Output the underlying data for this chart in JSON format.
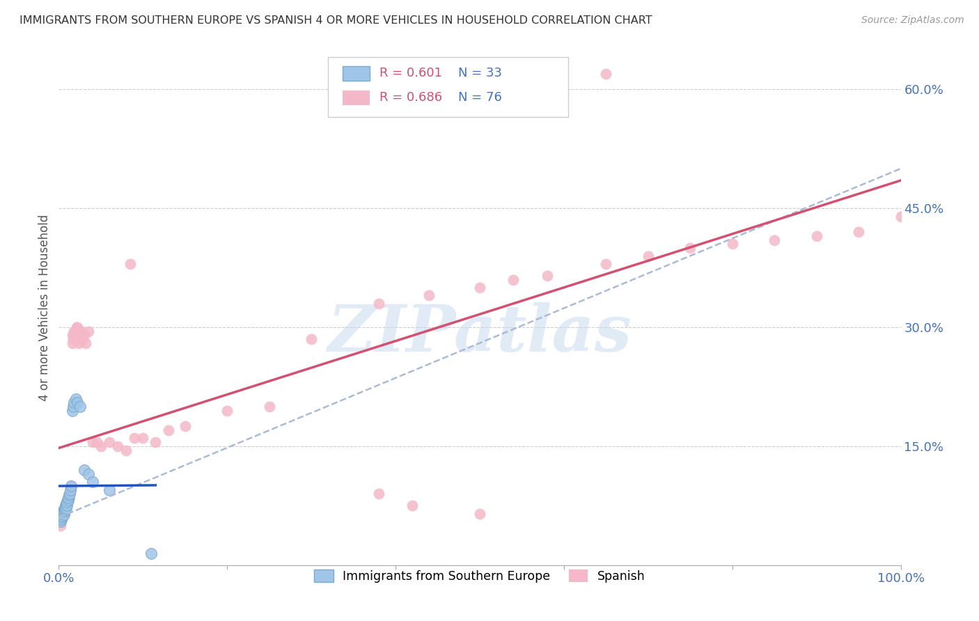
{
  "title": "IMMIGRANTS FROM SOUTHERN EUROPE VS SPANISH 4 OR MORE VEHICLES IN HOUSEHOLD CORRELATION CHART",
  "source": "Source: ZipAtlas.com",
  "ylabel": "4 or more Vehicles in Household",
  "xlim": [
    0.0,
    1.0
  ],
  "ylim": [
    0.0,
    0.65
  ],
  "xtick_labels": [
    "0.0%",
    "",
    "",
    "",
    "",
    "100.0%"
  ],
  "ytick_labels": [
    "",
    "15.0%",
    "30.0%",
    "45.0%",
    "60.0%"
  ],
  "yticks": [
    0.0,
    0.15,
    0.3,
    0.45,
    0.6
  ],
  "xticks": [
    0.0,
    0.2,
    0.4,
    0.6,
    0.8,
    1.0
  ],
  "color_blue": "#4472c4",
  "background_color": "#ffffff",
  "scatter_blue_color": "#9fc5e8",
  "scatter_pink_color": "#f4b8c8",
  "line_blue_color": "#2255bb",
  "line_pink_color": "#d45070",
  "line_dashed_color": "#aabbd4",
  "legend_label1": "Immigrants from Southern Europe",
  "legend_label2": "Spanish",
  "watermark": "ZIPatlas",
  "blue_x": [
    0.002,
    0.003,
    0.004,
    0.004,
    0.005,
    0.005,
    0.006,
    0.006,
    0.007,
    0.007,
    0.008,
    0.008,
    0.009,
    0.009,
    0.01,
    0.01,
    0.011,
    0.011,
    0.012,
    0.013,
    0.014,
    0.015,
    0.016,
    0.017,
    0.018,
    0.02,
    0.022,
    0.025,
    0.03,
    0.035,
    0.04,
    0.06,
    0.11
  ],
  "blue_y": [
    0.055,
    0.058,
    0.06,
    0.065,
    0.062,
    0.068,
    0.064,
    0.07,
    0.068,
    0.072,
    0.07,
    0.075,
    0.072,
    0.078,
    0.075,
    0.08,
    0.082,
    0.085,
    0.088,
    0.09,
    0.095,
    0.1,
    0.195,
    0.2,
    0.205,
    0.21,
    0.205,
    0.2,
    0.12,
    0.115,
    0.105,
    0.095,
    0.015
  ],
  "pink_x": [
    0.002,
    0.003,
    0.003,
    0.004,
    0.004,
    0.005,
    0.005,
    0.006,
    0.006,
    0.007,
    0.007,
    0.008,
    0.008,
    0.009,
    0.009,
    0.01,
    0.01,
    0.011,
    0.011,
    0.012,
    0.012,
    0.013,
    0.013,
    0.014,
    0.014,
    0.015,
    0.015,
    0.016,
    0.016,
    0.017,
    0.018,
    0.019,
    0.02,
    0.021,
    0.022,
    0.023,
    0.024,
    0.025,
    0.027,
    0.028,
    0.03,
    0.032,
    0.035,
    0.04,
    0.045,
    0.05,
    0.06,
    0.07,
    0.08,
    0.09,
    0.1,
    0.115,
    0.13,
    0.15,
    0.2,
    0.25,
    0.3,
    0.38,
    0.44,
    0.5,
    0.54,
    0.58,
    0.65,
    0.7,
    0.75,
    0.8,
    0.85,
    0.9,
    0.95,
    1.0,
    0.085,
    0.38,
    0.42,
    0.5,
    0.58,
    0.65
  ],
  "pink_y": [
    0.05,
    0.055,
    0.06,
    0.06,
    0.065,
    0.062,
    0.068,
    0.065,
    0.07,
    0.068,
    0.074,
    0.07,
    0.075,
    0.073,
    0.078,
    0.076,
    0.082,
    0.08,
    0.085,
    0.083,
    0.088,
    0.086,
    0.09,
    0.092,
    0.095,
    0.096,
    0.1,
    0.28,
    0.29,
    0.285,
    0.295,
    0.285,
    0.295,
    0.3,
    0.3,
    0.295,
    0.28,
    0.285,
    0.295,
    0.285,
    0.29,
    0.28,
    0.295,
    0.155,
    0.155,
    0.15,
    0.155,
    0.15,
    0.145,
    0.16,
    0.16,
    0.155,
    0.17,
    0.175,
    0.195,
    0.2,
    0.285,
    0.33,
    0.34,
    0.35,
    0.36,
    0.365,
    0.38,
    0.39,
    0.4,
    0.405,
    0.41,
    0.415,
    0.42,
    0.44,
    0.38,
    0.09,
    0.075,
    0.065,
    0.6,
    0.62
  ]
}
